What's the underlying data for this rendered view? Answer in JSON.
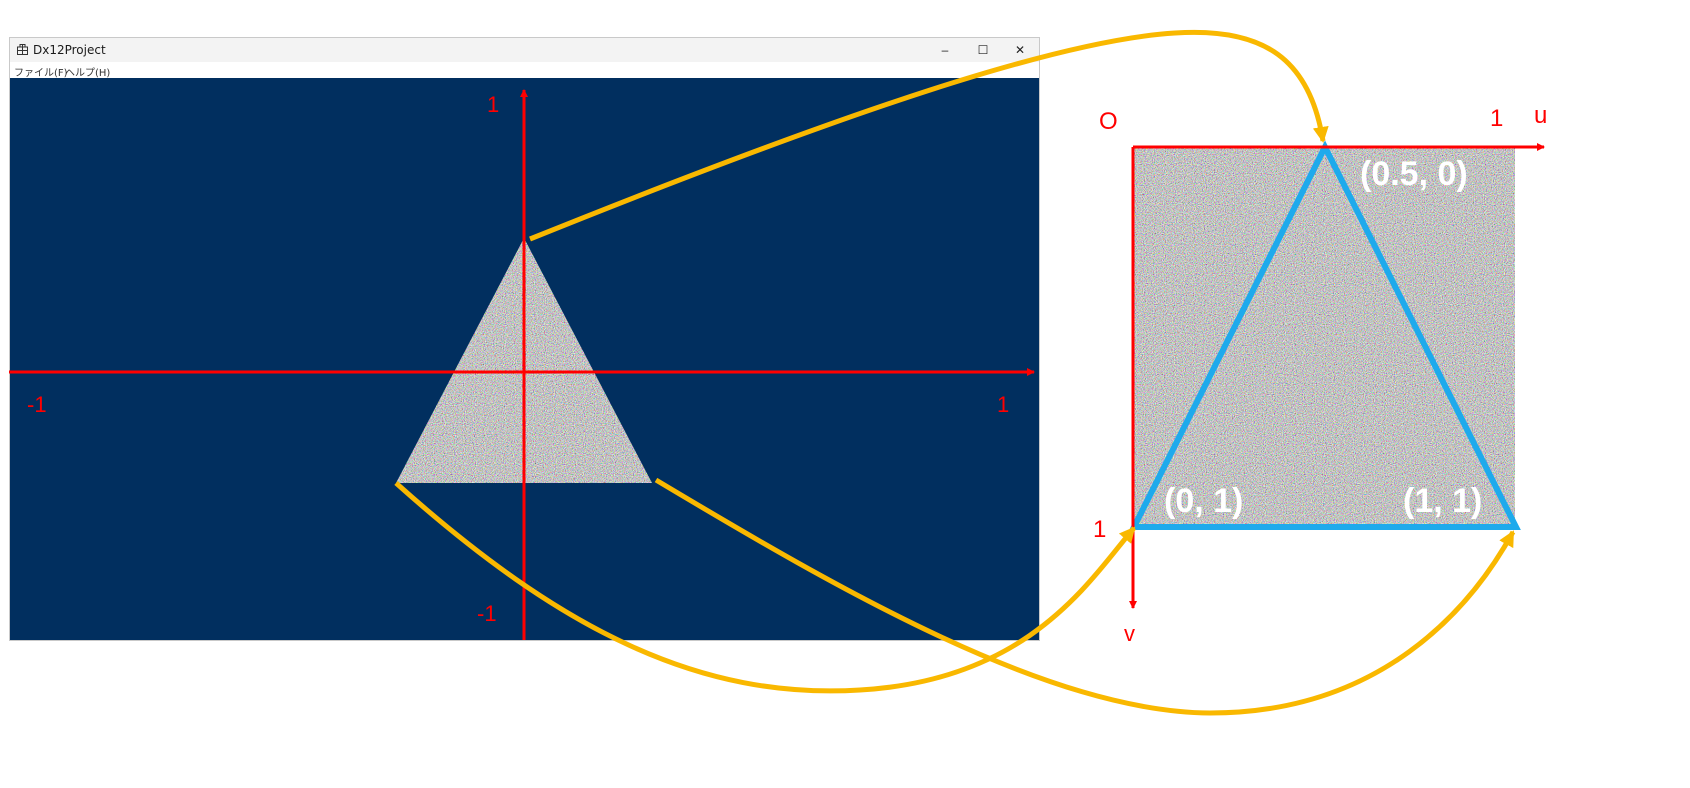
{
  "window": {
    "title": "Dx12Project",
    "menu": [
      {
        "label": "ファイル(F)"
      },
      {
        "label": "ヘルプ(H)"
      }
    ],
    "buttons": {
      "minimize": "–",
      "maximize": "☐",
      "close": "✕"
    },
    "background_color": "#012f5f"
  },
  "screen_axes": {
    "x_neg_label": "-1",
    "x_pos_label": "1",
    "y_pos_label": "1",
    "y_neg_label": "-1",
    "axis_color": "#ff0000"
  },
  "uv_axes": {
    "origin_label": "O",
    "u_label": "u",
    "v_label": "v",
    "u_one_label": "1",
    "v_one_label": "1",
    "axis_color": "#ff0000"
  },
  "uv_points": [
    {
      "label": "(0.5, 0)"
    },
    {
      "label": "(0, 1)"
    },
    {
      "label": "(1, 1)"
    }
  ],
  "colors": {
    "triangle_outline": "#1eaaec",
    "mapping_arrows": "#f9b800"
  }
}
